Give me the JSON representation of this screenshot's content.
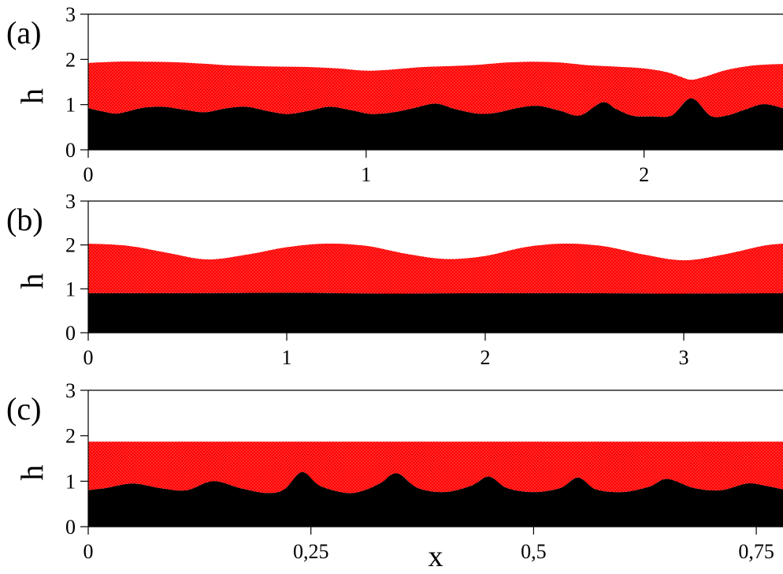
{
  "colors": {
    "film": "#ff0000",
    "film_dots": "#ffd0d0",
    "substrate": "#000000",
    "background": "#ffffff"
  },
  "chart_data": [
    {
      "type": "area",
      "panel_label": "(a)",
      "ylabel": "h",
      "xlabel": "",
      "xlim": [
        0,
        2.5
      ],
      "ylim": [
        0,
        3
      ],
      "xticks": [
        0,
        1,
        2
      ],
      "xtick_labels": [
        "0",
        "1",
        "2"
      ],
      "yticks": [
        0,
        1,
        2,
        3
      ],
      "ytick_labels": [
        "0",
        "1",
        "2",
        "3"
      ],
      "series": [
        {
          "role": "substrate",
          "x": [
            0,
            0.05,
            0.1,
            0.15,
            0.2,
            0.27,
            0.35,
            0.42,
            0.5,
            0.57,
            0.65,
            0.72,
            0.8,
            0.87,
            0.95,
            1.02,
            1.1,
            1.17,
            1.25,
            1.32,
            1.4,
            1.47,
            1.55,
            1.62,
            1.7,
            1.77,
            1.85,
            1.9,
            1.96,
            2.03,
            2.1,
            2.17,
            2.24,
            2.3,
            2.36,
            2.43,
            2.5
          ],
          "values": [
            0.92,
            0.85,
            0.8,
            0.86,
            0.93,
            0.95,
            0.88,
            0.83,
            0.92,
            0.95,
            0.85,
            0.79,
            0.87,
            0.95,
            0.87,
            0.79,
            0.83,
            0.92,
            1.02,
            0.9,
            0.8,
            0.82,
            0.93,
            0.97,
            0.86,
            0.76,
            1.05,
            0.9,
            0.75,
            0.74,
            0.76,
            1.14,
            0.75,
            0.76,
            0.88,
            1.01,
            0.92
          ]
        },
        {
          "role": "film_surface",
          "x": [
            0,
            0.1,
            0.2,
            0.3,
            0.4,
            0.5,
            0.6,
            0.7,
            0.8,
            0.9,
            1.0,
            1.1,
            1.2,
            1.3,
            1.4,
            1.5,
            1.6,
            1.7,
            1.8,
            1.9,
            2.0,
            2.08,
            2.13,
            2.17,
            2.22,
            2.3,
            2.4,
            2.5
          ],
          "values": [
            1.92,
            1.95,
            1.95,
            1.94,
            1.91,
            1.87,
            1.85,
            1.84,
            1.83,
            1.8,
            1.75,
            1.78,
            1.83,
            1.85,
            1.88,
            1.93,
            1.95,
            1.93,
            1.87,
            1.84,
            1.8,
            1.72,
            1.62,
            1.55,
            1.62,
            1.77,
            1.87,
            1.9
          ]
        }
      ]
    },
    {
      "type": "area",
      "panel_label": "(b)",
      "ylabel": "h",
      "xlabel": "",
      "xlim": [
        0,
        3.5
      ],
      "ylim": [
        0,
        3
      ],
      "xticks": [
        0,
        1,
        2,
        3
      ],
      "xtick_labels": [
        "0",
        "1",
        "2",
        "3"
      ],
      "yticks": [
        0,
        1,
        2,
        3
      ],
      "ytick_labels": [
        "0",
        "1",
        "2",
        "3"
      ],
      "series": [
        {
          "role": "substrate",
          "x": [
            0,
            0.5,
            1.0,
            1.5,
            2.0,
            2.5,
            3.0,
            3.5
          ],
          "values": [
            0.9,
            0.9,
            0.91,
            0.89,
            0.9,
            0.9,
            0.89,
            0.9
          ]
        },
        {
          "role": "film_surface",
          "x": [
            0,
            0.2,
            0.4,
            0.6,
            0.8,
            1.0,
            1.2,
            1.4,
            1.6,
            1.8,
            2.0,
            2.2,
            2.4,
            2.6,
            2.8,
            3.0,
            3.2,
            3.4,
            3.5
          ],
          "values": [
            2.03,
            1.98,
            1.82,
            1.67,
            1.78,
            1.95,
            2.03,
            1.98,
            1.8,
            1.68,
            1.75,
            1.95,
            2.03,
            1.97,
            1.78,
            1.65,
            1.78,
            1.98,
            2.03
          ]
        }
      ]
    },
    {
      "type": "area",
      "panel_label": "(c)",
      "ylabel": "h",
      "xlabel": "x",
      "xlim": [
        0,
        0.78
      ],
      "ylim": [
        0,
        3
      ],
      "xticks": [
        0,
        0.25,
        0.5,
        0.75
      ],
      "xtick_labels": [
        "0",
        "0,25",
        "0,5",
        "0,75"
      ],
      "yticks": [
        0,
        1,
        2,
        3
      ],
      "ytick_labels": [
        "0",
        "1",
        "2",
        "3"
      ],
      "series": [
        {
          "role": "substrate",
          "x": [
            0,
            0.02,
            0.05,
            0.08,
            0.11,
            0.14,
            0.17,
            0.2,
            0.22,
            0.24,
            0.26,
            0.29,
            0.31,
            0.33,
            0.34,
            0.35,
            0.37,
            0.4,
            0.43,
            0.45,
            0.47,
            0.5,
            0.53,
            0.55,
            0.57,
            0.6,
            0.63,
            0.65,
            0.68,
            0.71,
            0.74,
            0.76,
            0.78
          ],
          "values": [
            0.8,
            0.85,
            0.95,
            0.85,
            0.8,
            1.0,
            0.85,
            0.74,
            0.82,
            1.2,
            0.9,
            0.74,
            0.8,
            0.98,
            1.14,
            1.15,
            0.85,
            0.76,
            0.9,
            1.1,
            0.85,
            0.76,
            0.85,
            1.08,
            0.82,
            0.76,
            0.88,
            1.05,
            0.85,
            0.8,
            0.95,
            0.9,
            0.82
          ]
        },
        {
          "role": "film_surface",
          "x": [
            0,
            0.78
          ],
          "values": [
            1.87,
            1.87
          ]
        }
      ]
    }
  ]
}
